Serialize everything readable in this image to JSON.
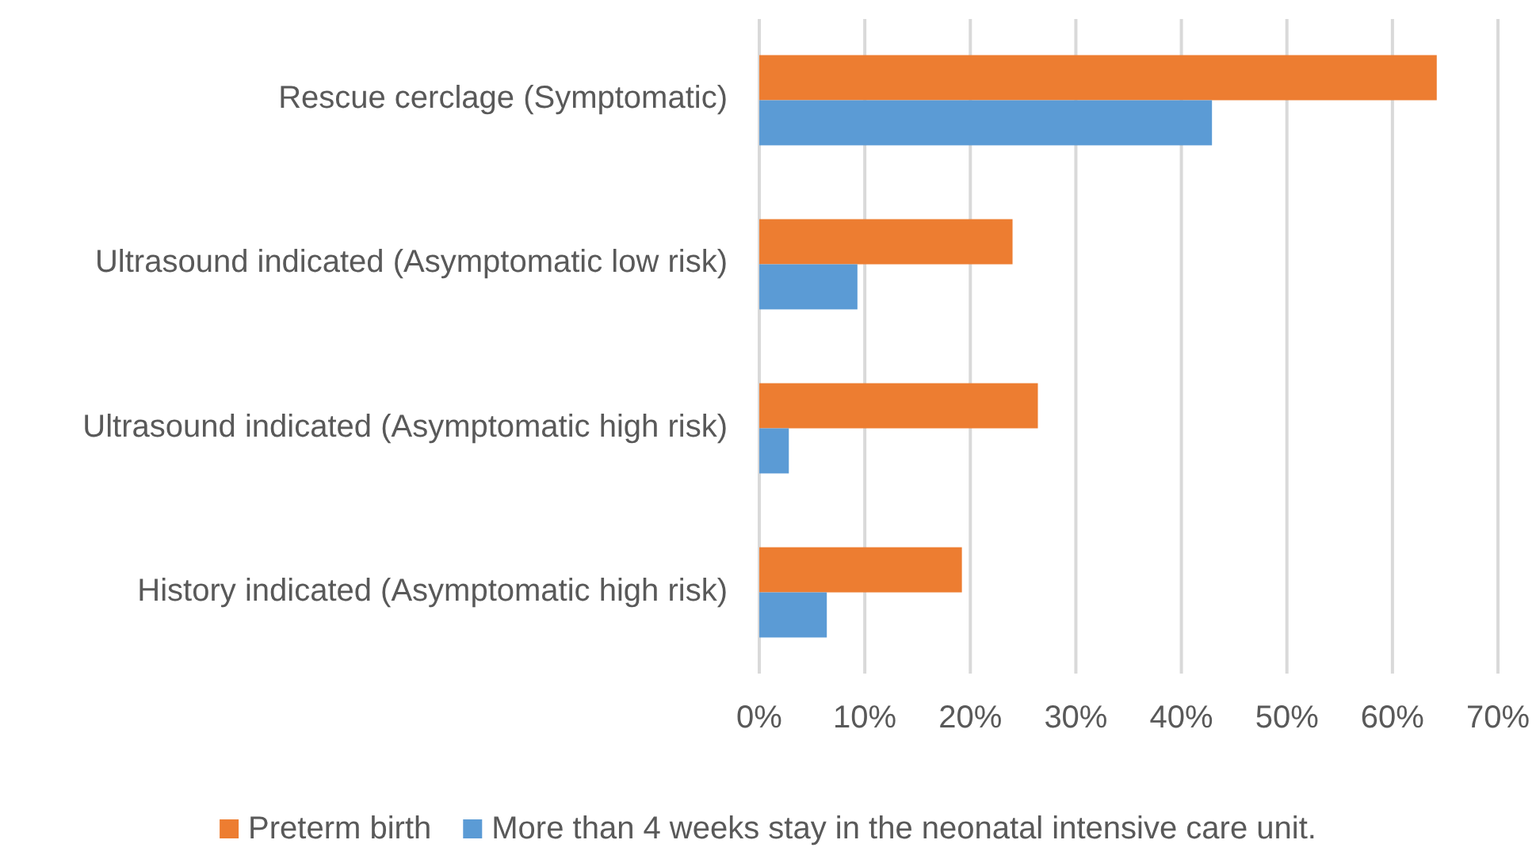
{
  "chart_data": {
    "type": "bar",
    "orientation": "horizontal",
    "categories": [
      "Rescue cerclage (Symptomatic)",
      "Ultrasound indicated (Asymptomatic low risk)",
      "Ultrasound indicated (Asymptomatic high risk)",
      "History indicated (Asymptomatic high risk)"
    ],
    "series": [
      {
        "name": "Preterm birth",
        "color": "#ed7d31",
        "values": [
          64.2,
          24.0,
          26.4,
          19.2
        ]
      },
      {
        "name": "More than 4 weeks stay in the neonatal intensive care unit.",
        "color": "#5b9bd5",
        "values": [
          42.9,
          9.3,
          2.8,
          6.4
        ]
      }
    ],
    "xlim": [
      0,
      70
    ],
    "xticks": [
      {
        "value": 0,
        "label": "0%"
      },
      {
        "value": 10,
        "label": "10%"
      },
      {
        "value": 20,
        "label": "20%"
      },
      {
        "value": 30,
        "label": "30%"
      },
      {
        "value": 40,
        "label": "40%"
      },
      {
        "value": 50,
        "label": "50%"
      },
      {
        "value": 60,
        "label": "60%"
      },
      {
        "value": 70,
        "label": "70%"
      }
    ],
    "grid": "x",
    "legend": "bottom"
  }
}
